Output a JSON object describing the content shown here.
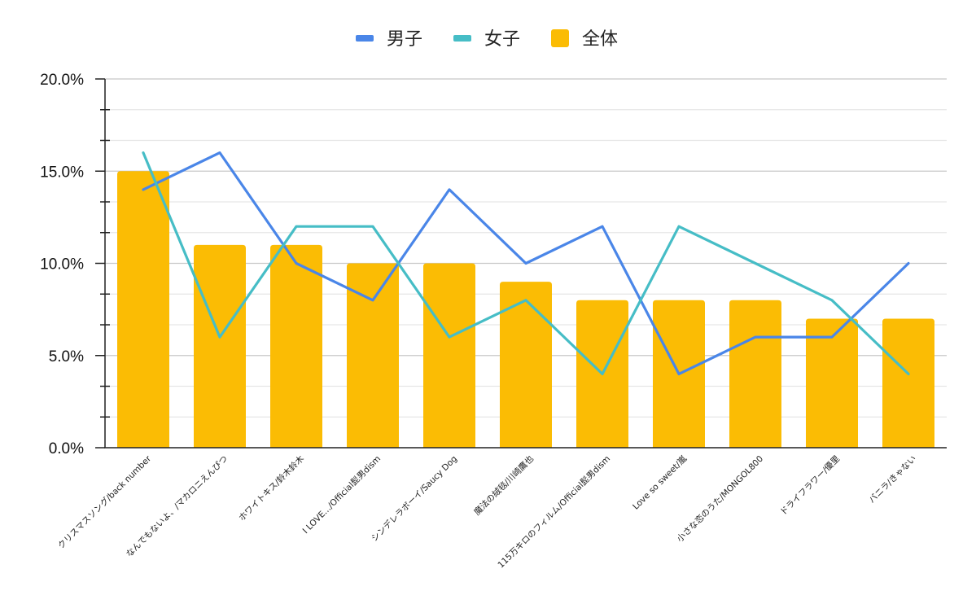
{
  "chart_data": {
    "type": "bar",
    "title": "",
    "xlabel": "",
    "ylabel": "",
    "ylim": [
      0,
      20
    ],
    "y_ticks": [
      "0.0%",
      "5.0%",
      "10.0%",
      "15.0%",
      "20.0%"
    ],
    "grid": true,
    "legend_position": "top",
    "categories": [
      "クリスマスソング/back number",
      "なんでもないよ、/マカロニえんぴつ",
      "ホワイトキス/鈴木鈴木",
      "I LOVE.../Official髭男dism",
      "シンデレラボーイ/Saucy Dog",
      "魔法の絨毯/川崎鷹也",
      "115万キロのフィルム/Official髭男dism",
      "Love so sweet/嵐",
      "小さな恋のうた/MONGOL800",
      "ドライフラワー/優里",
      "バニラ/きゃない"
    ],
    "series": [
      {
        "name": "男子",
        "type": "line",
        "color": "#4a86e8",
        "values": [
          14,
          16,
          10,
          8,
          14,
          10,
          12,
          4,
          6,
          6,
          10
        ]
      },
      {
        "name": "女子",
        "type": "line",
        "color": "#46bdc6",
        "values": [
          16,
          6,
          12,
          12,
          6,
          8,
          4,
          12,
          10,
          8,
          4
        ]
      },
      {
        "name": "全体",
        "type": "bar",
        "color": "#fbbc04",
        "values": [
          15,
          11,
          11,
          10,
          10,
          9,
          8,
          8,
          8,
          7,
          7
        ]
      }
    ]
  }
}
